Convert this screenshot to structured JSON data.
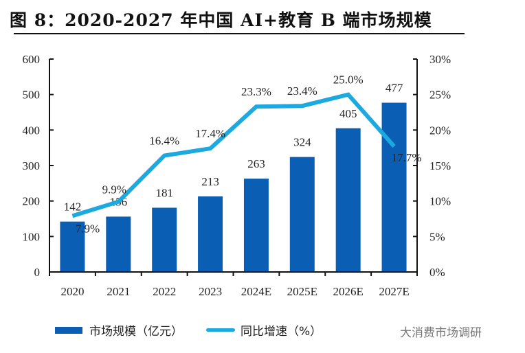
{
  "title": "图 8：2020-2027 年中国 AI+教育 B 端市场规模",
  "watermark": "大消费市场调研",
  "chart_data": {
    "type": "bar+line",
    "title": "图 8：2020-2027 年中国 AI+教育 B 端市场规模",
    "categories": [
      "2020",
      "2021",
      "2022",
      "2023",
      "2024E",
      "2025E",
      "2026E",
      "2027E"
    ],
    "series": [
      {
        "name": "市场规模（亿元）",
        "type": "bar",
        "axis": "left",
        "color": "#0a5fb4",
        "values": [
          142,
          156,
          181,
          213,
          263,
          324,
          405,
          477
        ],
        "labels": [
          "142",
          "156",
          "181",
          "213",
          "263",
          "324",
          "405",
          "477"
        ]
      },
      {
        "name": "同比增速（%）",
        "type": "line",
        "axis": "right",
        "color": "#1ba9e0",
        "values": [
          7.9,
          9.9,
          16.4,
          17.4,
          23.3,
          23.4,
          25.0,
          17.7
        ],
        "labels": [
          "7.9%",
          "9.9%",
          "16.4%",
          "17.4%",
          "23.3%",
          "23.4%",
          "25.0%",
          "17.7%"
        ]
      }
    ],
    "y_left": {
      "ylim": [
        0,
        600
      ],
      "ticks": [
        "0",
        "100",
        "200",
        "300",
        "400",
        "500",
        "600"
      ]
    },
    "y_right": {
      "ylim": [
        0,
        30
      ],
      "ticks": [
        "0%",
        "5%",
        "10%",
        "15%",
        "20%",
        "25%",
        "30%"
      ]
    },
    "xlabel": "",
    "ylabel": "",
    "grid": false,
    "legend": "bottom"
  },
  "legend": {
    "bar_label": "市场规模（亿元）",
    "line_label": "同比增速（%）"
  }
}
